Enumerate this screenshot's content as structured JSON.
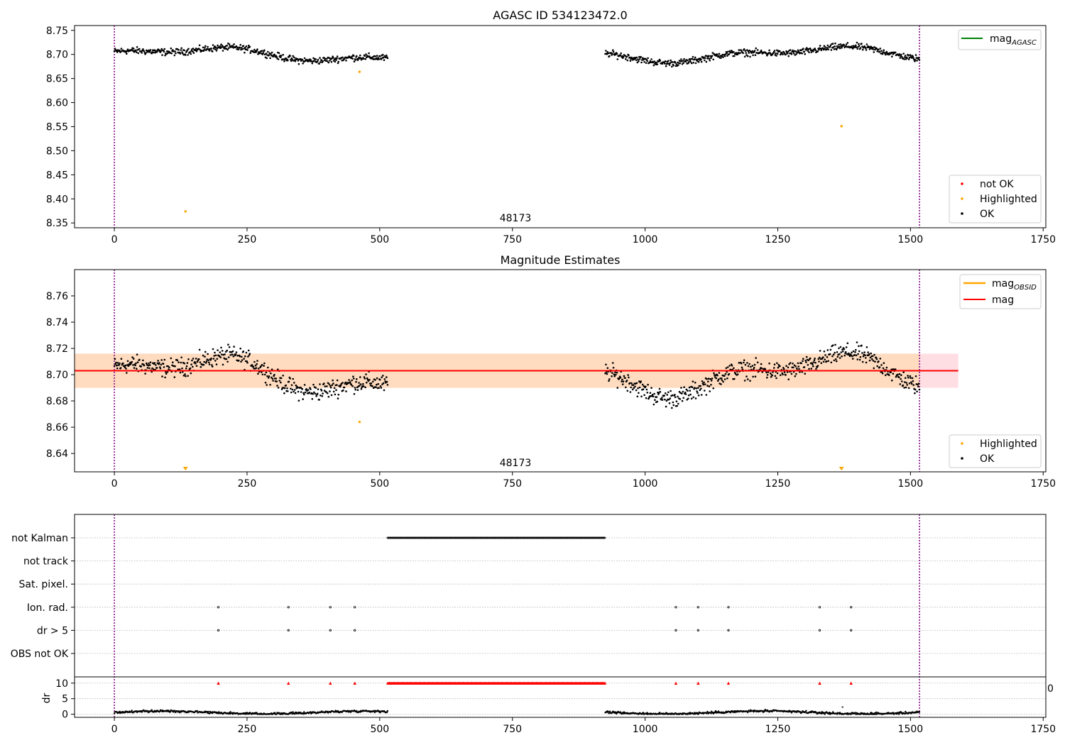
{
  "colors": {
    "ok": "#000000",
    "highlighted": "#ffa500",
    "not_ok": "#ff0000",
    "mag_agasc": "#008000",
    "mag_obsid": "#ffa500",
    "mag": "#ff0000",
    "band_outer": "#ffb6c1",
    "band_inner": "#ffdab9",
    "vline": "#800080",
    "grid": "#b0b0b0"
  },
  "chart_data": [
    {
      "type": "scatter",
      "title": "AGASC ID 534123472.0",
      "annotation": "48173",
      "xlim": [
        -75,
        1755
      ],
      "ylim": [
        8.34,
        8.76
      ],
      "xticks": [
        0,
        250,
        500,
        750,
        1000,
        1250,
        1500,
        1750
      ],
      "yticks": [
        8.35,
        8.4,
        8.45,
        8.5,
        8.55,
        8.6,
        8.65,
        8.7,
        8.75
      ],
      "vlines": [
        0,
        1517
      ],
      "line_legend": [
        "mag",
        "AGASC"
      ],
      "point_legend": [
        "not OK",
        "Highlighted",
        "OK"
      ],
      "series": [
        {
          "name": "OK",
          "segments": [
            [
              0,
              515
            ],
            [
              925,
              1517
            ]
          ],
          "baseline": 8.7,
          "wiggle": 0.012,
          "noise": 0.006
        },
        {
          "name": "Highlighted",
          "x": [
            134,
            462,
            1370
          ],
          "y": [
            8.374,
            8.664,
            8.551
          ]
        }
      ]
    },
    {
      "type": "scatter",
      "title": "Magnitude Estimates",
      "annotation": "48173",
      "xlim": [
        -75,
        1755
      ],
      "ylim": [
        8.626,
        8.78
      ],
      "xticks": [
        0,
        250,
        500,
        750,
        1000,
        1250,
        1500,
        1750
      ],
      "yticks": [
        8.64,
        8.66,
        8.68,
        8.7,
        8.72,
        8.74,
        8.76
      ],
      "vlines": [
        0,
        1517
      ],
      "mag": 8.703,
      "mag_range": [
        -75,
        1590
      ],
      "band_outer": [
        8.69,
        8.716
      ],
      "band_inner": [
        8.69,
        8.716
      ],
      "band_inner_range": [
        -75,
        1517
      ],
      "line_legend": [
        [
          "mag",
          "OBSID"
        ],
        [
          "mag",
          ""
        ]
      ],
      "point_legend": [
        "Highlighted",
        "OK"
      ],
      "series": [
        {
          "name": "OK",
          "segments": [
            [
              0,
              515
            ],
            [
              925,
              1517
            ]
          ],
          "baseline": 8.7,
          "wiggle": 0.012,
          "noise": 0.006
        },
        {
          "name": "Highlighted",
          "x": [
            462
          ],
          "y": [
            8.664
          ],
          "markers_below": [
            134,
            1370
          ]
        }
      ]
    },
    {
      "type": "scatter",
      "xlim": [
        -75,
        1755
      ],
      "xticks": [
        0,
        250,
        500,
        750,
        1000,
        1250,
        1500,
        1750
      ],
      "vlines": [
        0,
        1517
      ],
      "categories": [
        "not Kalman",
        "not track",
        "Sat. pixel.",
        "Ion. rad.",
        "dr > 5",
        "OBS not OK"
      ],
      "not_kalman_range": [
        515,
        925
      ],
      "flag_x": [
        196,
        328,
        407,
        453,
        1058,
        1100,
        1157,
        1329,
        1388
      ],
      "dr": {
        "ylabel": "dr",
        "ylim": [
          -1,
          12
        ],
        "yticks": [
          0,
          5,
          10
        ],
        "clip_value": 10,
        "segments": [
          [
            0,
            515
          ],
          [
            925,
            1517
          ]
        ],
        "outlier": {
          "x": 1372,
          "y": 2.3
        }
      },
      "stray_label": "0"
    }
  ]
}
